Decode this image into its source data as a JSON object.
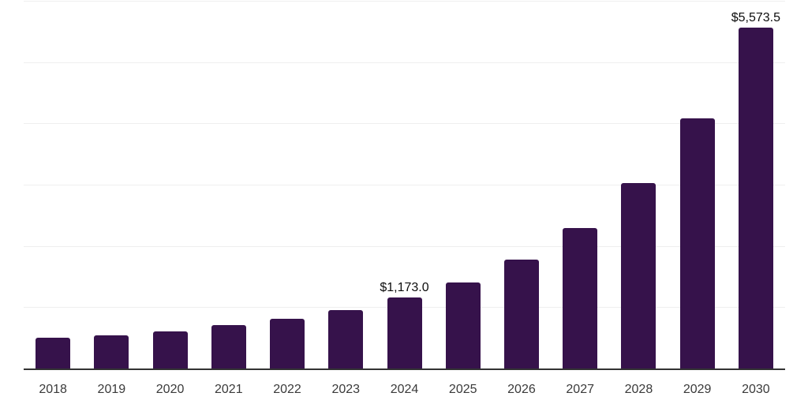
{
  "chart_data": {
    "type": "bar",
    "title": "",
    "xlabel": "",
    "ylabel": "",
    "categories": [
      "2018",
      "2019",
      "2020",
      "2021",
      "2022",
      "2023",
      "2024",
      "2025",
      "2026",
      "2027",
      "2028",
      "2029",
      "2030"
    ],
    "values": [
      510,
      555,
      620,
      715,
      820,
      970,
      1173.0,
      1420,
      1790,
      2310,
      3045,
      4090,
      5573.5
    ],
    "labeled_points": [
      {
        "index": 6,
        "label": "$1,173.0"
      },
      {
        "index": 12,
        "label": "$5,573.5"
      }
    ],
    "ylim": [
      0,
      6000
    ],
    "gridline_values": [
      1000,
      2000,
      3000,
      4000,
      5000,
      6000
    ],
    "grid": true,
    "legend": "none",
    "colors": {
      "bar": "#36124B",
      "axis": "#333333",
      "gridline": "#efefef",
      "tick_label": "#3a3a3a",
      "value_label": "#0d0d0d",
      "background": "#ffffff"
    }
  }
}
